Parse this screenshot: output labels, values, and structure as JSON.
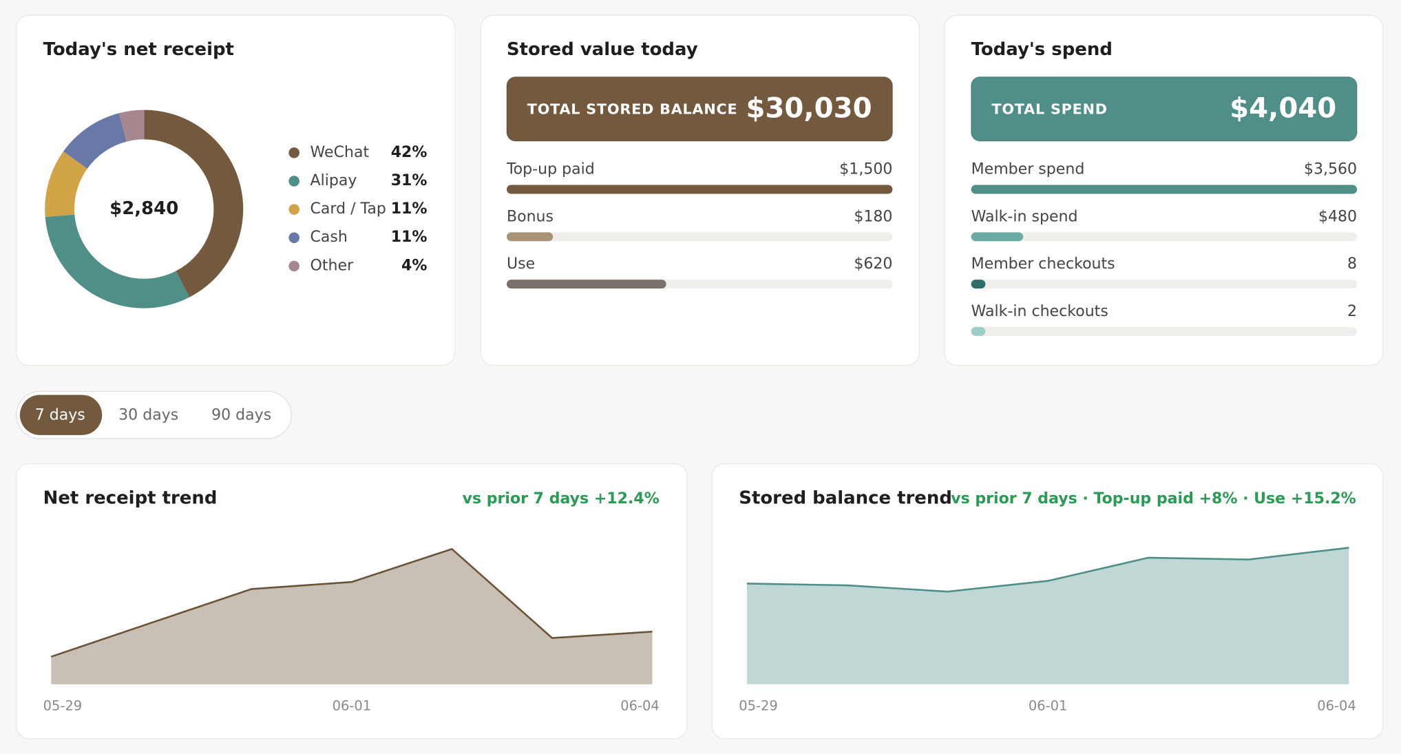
{
  "receipt": {
    "type": "pie",
    "title": "Today's net receipt",
    "total": "$2,840",
    "categories": [
      "WeChat",
      "Alipay",
      "Card / Tap",
      "Cash",
      "Other"
    ],
    "values": [
      42,
      31,
      11,
      11,
      4
    ],
    "value_labels": [
      "42%",
      "31%",
      "11%",
      "11%",
      "4%"
    ],
    "colors": [
      "#735a3e",
      "#4f8f87",
      "#d1a445",
      "#6879a8",
      "#a88890"
    ]
  },
  "stored": {
    "type": "bar",
    "title": "Stored value today",
    "total_label": "TOTAL STORED BALANCE",
    "total": "$30,030",
    "color": "#735a3e",
    "categories": [
      "Top-up paid",
      "Bonus",
      "Use"
    ],
    "values": [
      1500,
      180,
      620
    ],
    "value_labels": [
      "$1,500",
      "$180",
      "$620"
    ],
    "colors": [
      "#735a3e",
      "#a89376",
      "#7a716a"
    ]
  },
  "spend": {
    "type": "bar",
    "title": "Today's spend",
    "total_label": "TOTAL SPEND",
    "total": "$4,040",
    "color": "#4f8f87",
    "categories": [
      "Member spend",
      "Walk-in spend",
      "Member checkouts",
      "Walk-in checkouts"
    ],
    "values": [
      3560,
      480,
      8,
      2
    ],
    "value_labels": [
      "$3,560",
      "$480",
      "8",
      "2"
    ],
    "colors": [
      "#4f8f87",
      "#6aaba3",
      "#2f6e66",
      "#9ccfc8"
    ]
  },
  "range_tabs": {
    "options": [
      "7 days",
      "30 days",
      "90 days"
    ],
    "selected": 0
  },
  "receipt_trend": {
    "type": "area",
    "title": "Net receipt trend",
    "subtitle": "vs prior 7 days +12.4%",
    "x": [
      "05-29",
      null,
      null,
      "06-01",
      null,
      null,
      "06-04"
    ],
    "values": [
      1490,
      3320,
      5140,
      5520,
      7300,
      2500,
      2840
    ],
    "ylim": [
      0,
      8000
    ],
    "color": "#6b5338",
    "fill": "#c8c0b4"
  },
  "balance_trend": {
    "type": "area",
    "title": "Stored balance trend",
    "subtitle": "vs prior 7 days · Top-up paid +8% · Use +15.2%",
    "x": [
      "05-29",
      null,
      null,
      "06-01",
      null,
      null,
      "06-04"
    ],
    "values": [
      22150,
      21760,
      20380,
      22740,
      27830,
      27440,
      30030
    ],
    "ylim": [
      0,
      32600
    ],
    "color": "#4f8f87",
    "fill": "#bfd8d5"
  }
}
